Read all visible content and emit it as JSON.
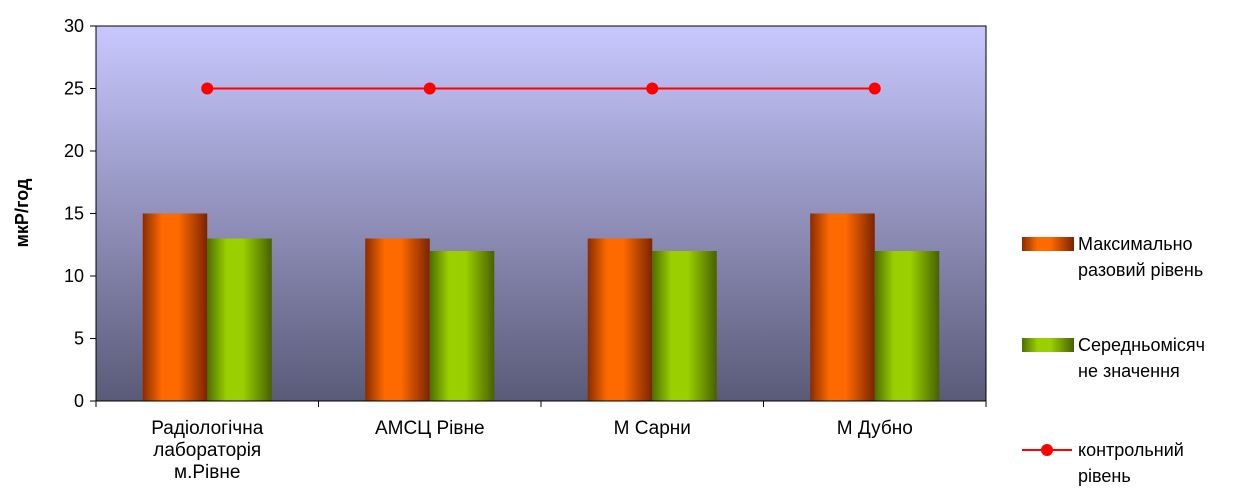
{
  "chart_data": {
    "type": "bar",
    "categories": [
      [
        "Радіологічна",
        "лабораторія",
        "м.Рівне"
      ],
      [
        "АМСЦ Рівне"
      ],
      [
        "М Сарни"
      ],
      [
        "М Дубно"
      ]
    ],
    "series": [
      {
        "name": [
          "Максимально",
          "разовий рівень"
        ],
        "kind": "bar",
        "values": [
          15,
          13,
          13,
          15
        ],
        "color": "#FF6A00"
      },
      {
        "name": [
          "Середньомісяч",
          "не значення"
        ],
        "kind": "bar",
        "values": [
          13,
          12,
          12,
          12
        ],
        "color": "#8FC400"
      },
      {
        "name": [
          "контрольний",
          "рівень"
        ],
        "kind": "line",
        "values": [
          25,
          25,
          25,
          25
        ],
        "color": "#FF0000"
      }
    ],
    "ylabel": "мкР/год",
    "ylim": [
      0,
      30
    ],
    "yticks": [
      0,
      5,
      10,
      15,
      20,
      25,
      30
    ],
    "grid": false,
    "legend_position": "right",
    "plot_background": {
      "top": "#C8C8FF",
      "bottom": "#5A5A78"
    }
  }
}
